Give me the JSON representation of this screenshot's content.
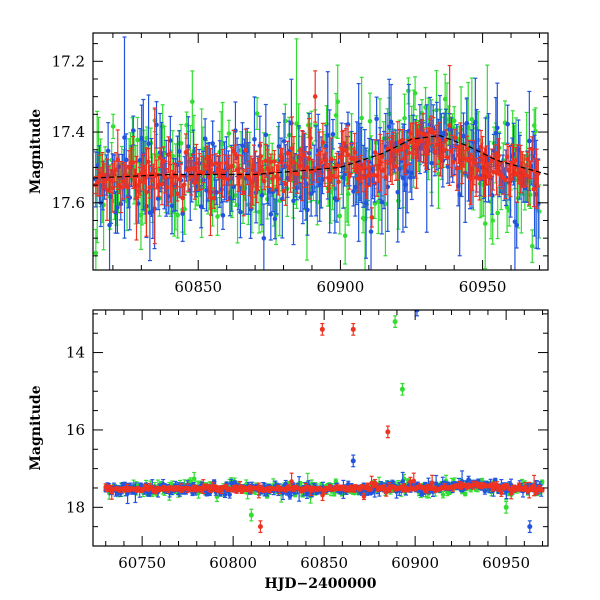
{
  "chart_data": [
    {
      "type": "scatter",
      "panel": "top",
      "title": "",
      "xlabel": "",
      "ylabel": "Magnitude",
      "xlim": [
        60813,
        60973
      ],
      "ylim": [
        17.79,
        17.12
      ],
      "y_inverted": true,
      "xticks": [
        60850,
        60900,
        60950
      ],
      "xtick_labels": [
        "60850",
        "60900",
        "60950"
      ],
      "yticks": [
        17.2,
        17.4,
        17.6
      ],
      "ytick_labels": [
        "17.2",
        "17.4",
        "17.6"
      ],
      "series": [
        {
          "name": "green",
          "color": "#33dd33"
        },
        {
          "name": "blue",
          "color": "#2255dd"
        },
        {
          "name": "red",
          "color": "#ee3322"
        }
      ],
      "trend_line": {
        "color": "#000000",
        "x": [
          60813,
          60840,
          60870,
          60900,
          60915,
          60925,
          60935,
          60945,
          60955,
          60973
        ],
        "y": [
          17.53,
          17.52,
          17.52,
          17.5,
          17.46,
          17.42,
          17.41,
          17.44,
          17.48,
          17.52
        ]
      }
    },
    {
      "type": "scatter",
      "panel": "bottom",
      "title": "",
      "xlabel": "HJD−2400000",
      "ylabel": "Magnitude",
      "xlim": [
        60723,
        60973
      ],
      "ylim": [
        19.0,
        12.9
      ],
      "y_inverted": true,
      "xticks": [
        60750,
        60800,
        60850,
        60900,
        60950
      ],
      "xtick_labels": [
        "60750",
        "60800",
        "60850",
        "60900",
        "60950"
      ],
      "yticks": [
        14,
        16,
        18
      ],
      "ytick_labels": [
        "14",
        "16",
        "18"
      ],
      "series": [
        {
          "name": "green",
          "color": "#33dd33"
        },
        {
          "name": "blue",
          "color": "#2255dd"
        },
        {
          "name": "red",
          "color": "#ee3322"
        }
      ],
      "outliers": [
        {
          "series": "red",
          "x": 60849,
          "y": 13.4
        },
        {
          "series": "red",
          "x": 60866,
          "y": 13.4
        },
        {
          "series": "green",
          "x": 60889,
          "y": 13.2
        },
        {
          "series": "green",
          "x": 60893,
          "y": 14.95
        },
        {
          "series": "blue",
          "x": 60901,
          "y": 12.9
        },
        {
          "series": "red",
          "x": 60885,
          "y": 16.05
        },
        {
          "series": "blue",
          "x": 60866,
          "y": 16.8
        },
        {
          "series": "red",
          "x": 60815,
          "y": 18.5
        },
        {
          "series": "green",
          "x": 60810,
          "y": 18.2
        },
        {
          "series": "blue",
          "x": 60963,
          "y": 18.5
        },
        {
          "series": "green",
          "x": 60950,
          "y": 18.0
        }
      ]
    }
  ]
}
